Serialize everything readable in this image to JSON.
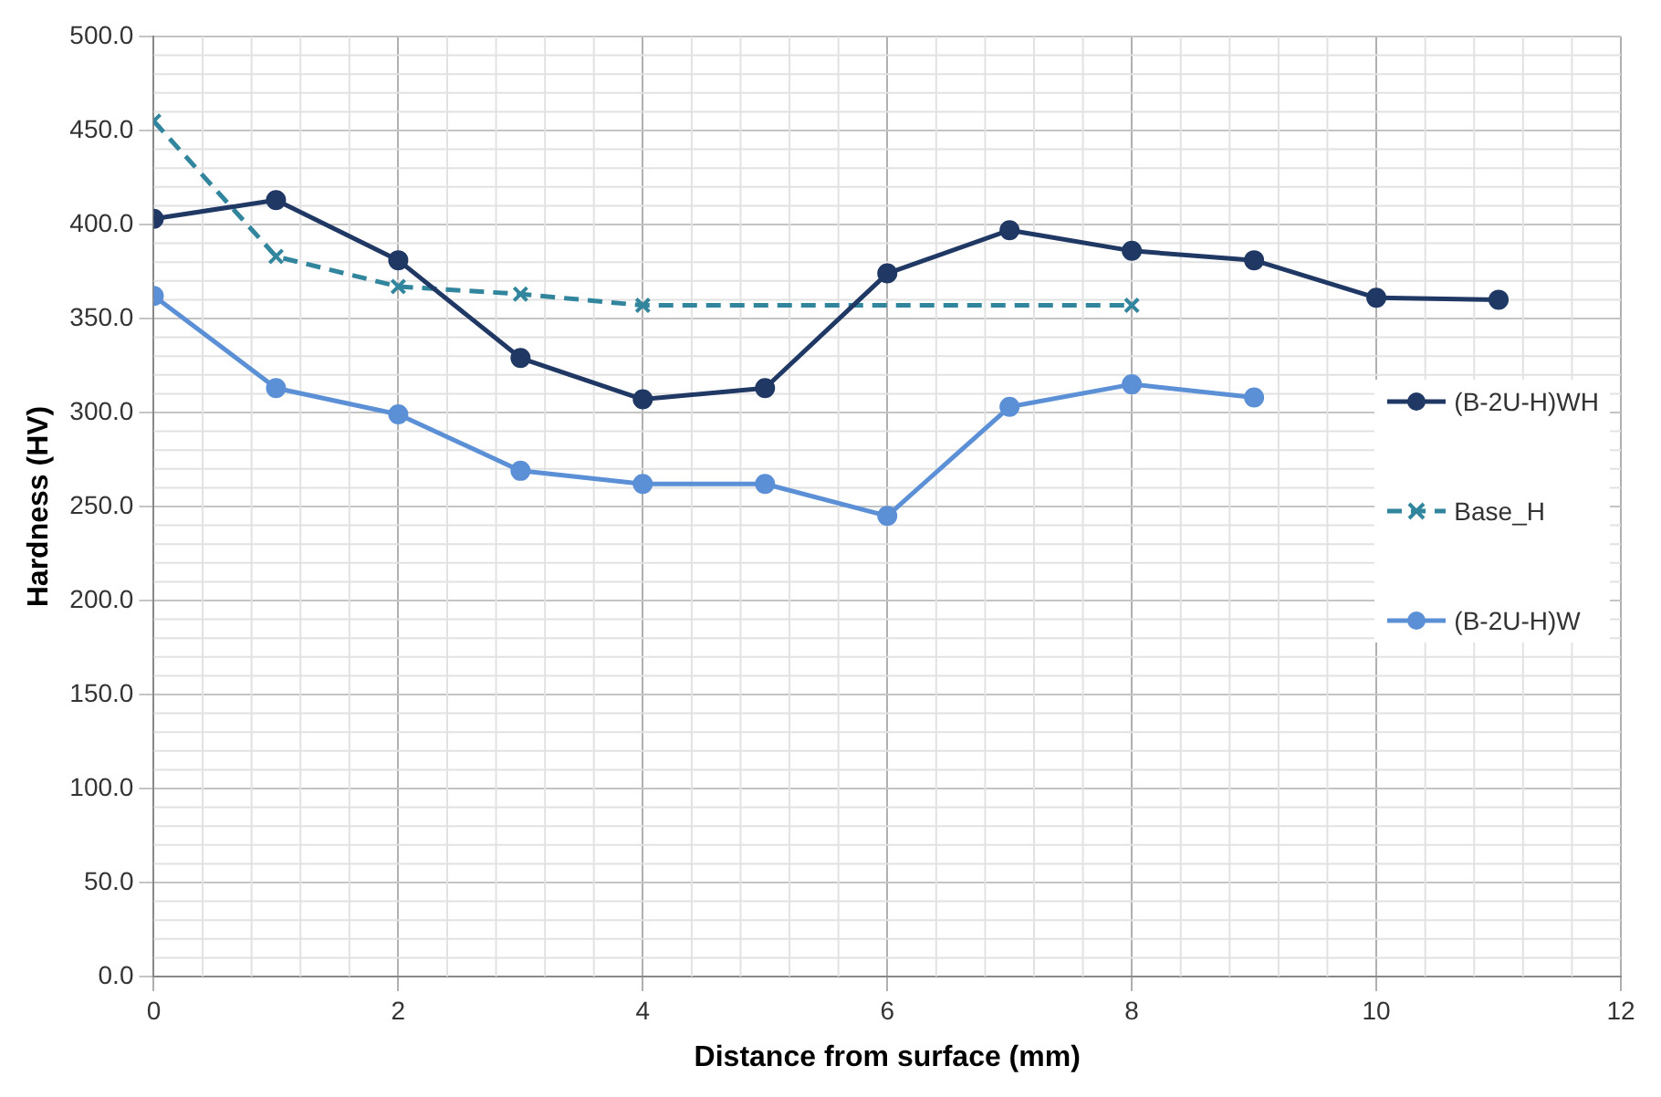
{
  "chart_data": {
    "type": "line",
    "xlabel": "Distance from surface (mm)",
    "ylabel": "Hardness (HV)",
    "xlim": [
      0,
      12
    ],
    "xticks": [
      0,
      2,
      4,
      6,
      8,
      10,
      12
    ],
    "ylim": [
      0,
      500
    ],
    "yticks": [
      {
        "value": 0,
        "label": "0.0"
      },
      {
        "value": 50,
        "label": "50.0"
      },
      {
        "value": 100,
        "label": "100.0"
      },
      {
        "value": 150,
        "label": "150.0"
      },
      {
        "value": 200,
        "label": "200.0"
      },
      {
        "value": 250,
        "label": "250.0"
      },
      {
        "value": 300,
        "label": "300.0"
      },
      {
        "value": 350,
        "label": "350.0"
      },
      {
        "value": 400,
        "label": "400.0"
      },
      {
        "value": 450,
        "label": "450.0"
      },
      {
        "value": 500,
        "label": "500.0"
      }
    ],
    "grid": true,
    "legend": "right",
    "series": [
      {
        "name": "(B-2U-H)WH",
        "color": "#1f3864",
        "marker": "circle",
        "line_style": "solid",
        "x": [
          0,
          1,
          2,
          3,
          4,
          5,
          6,
          7,
          8,
          9,
          10,
          11
        ],
        "values": [
          403,
          413,
          381,
          329,
          307,
          313,
          374,
          397,
          386,
          381,
          361,
          360
        ]
      },
      {
        "name": "Base_H",
        "color": "#31859c",
        "marker": "cross",
        "line_style": "dashed",
        "x": [
          0,
          1,
          2,
          3,
          4,
          8
        ],
        "values": [
          455,
          383,
          367,
          363,
          357,
          357
        ]
      },
      {
        "name": "(B-2U-H)W",
        "color": "#5b8fd6",
        "marker": "circle",
        "line_style": "solid",
        "x": [
          0,
          1,
          2,
          3,
          4,
          5,
          6,
          7,
          8,
          9
        ],
        "values": [
          362,
          313,
          299,
          269,
          262,
          262,
          245,
          303,
          315,
          308
        ]
      }
    ]
  }
}
